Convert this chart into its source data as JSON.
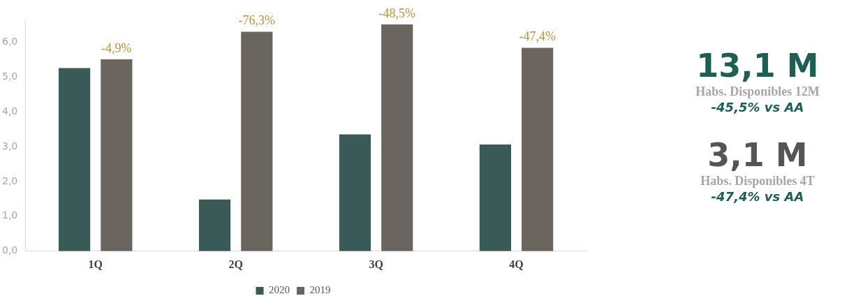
{
  "chart_data": [
    {
      "type": "bar",
      "categories": [
        "1Q",
        "2Q",
        "3Q",
        "4Q"
      ],
      "series": [
        {
          "name": "2020",
          "color": "#3a5a58",
          "values": [
            5.25,
            1.48,
            3.35,
            3.06
          ]
        },
        {
          "name": "2019",
          "color": "#6b6560",
          "values": [
            5.5,
            6.29,
            6.5,
            5.83
          ]
        }
      ],
      "ylim": [
        0,
        6.6
      ],
      "yticks": [
        {
          "value": 0,
          "label": "0,0"
        },
        {
          "value": 1,
          "label": "1,0"
        },
        {
          "value": 2,
          "label": "2,0"
        },
        {
          "value": 3,
          "label": "3,0"
        },
        {
          "value": 4,
          "label": "4,0"
        },
        {
          "value": 5,
          "label": "5,0"
        },
        {
          "value": 6,
          "label": "6,0"
        }
      ],
      "grid": false,
      "legend": "bottom",
      "annotations": [
        "-4,9%",
        "-76,3%",
        "-48,5%",
        "-47,4%"
      ]
    },
    {
      "type": "other",
      "annotations": [
        "13,1 M",
        "Habs. Disponibles  12M",
        "-45,5% vs AA",
        "3,1 M",
        "Habs. Disponibles 4T",
        "-47,4% vs AA"
      ]
    }
  ]
}
